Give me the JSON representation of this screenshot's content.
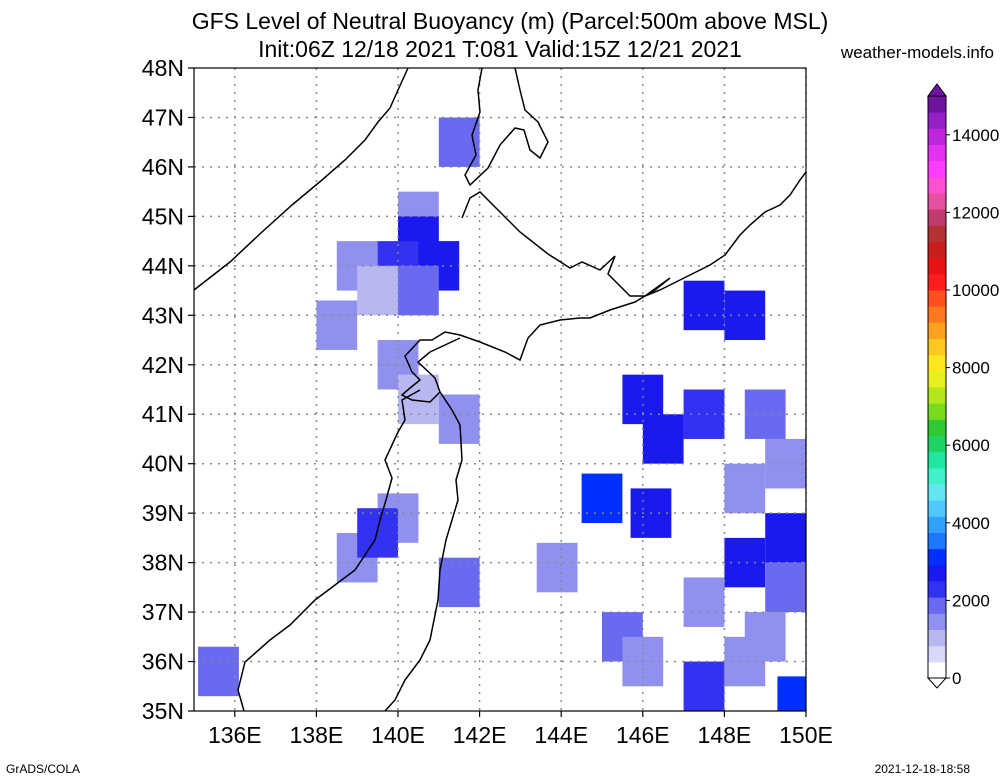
{
  "chart_data": {
    "type": "heatmap",
    "title": "GFS Level of Neutral Buoyancy (m) (Parcel:500m above MSL)",
    "subtitle": "Init:06Z 12/18 2021 T:081 Valid:15Z 12/21 2021",
    "x_ticks": [
      "136E",
      "138E",
      "140E",
      "142E",
      "144E",
      "146E",
      "148E",
      "150E"
    ],
    "y_ticks": [
      "48N",
      "47N",
      "46N",
      "45N",
      "44N",
      "43N",
      "42N",
      "41N",
      "40N",
      "39N",
      "38N",
      "37N",
      "36N",
      "35N"
    ],
    "xlim": [
      135,
      150
    ],
    "ylim": [
      35,
      48
    ],
    "grid": true,
    "colorbar": {
      "labels": [
        "14000",
        "12000",
        "10000",
        "8000",
        "6000",
        "4000",
        "2000",
        "0"
      ],
      "range": [
        0,
        15000
      ],
      "colors": [
        "#ffffff",
        "#d8d8f8",
        "#b8b8f0",
        "#9090ee",
        "#6a6af0",
        "#3232f0",
        "#1a1aee",
        "#0030ff",
        "#1e78ff",
        "#32a0ff",
        "#50c8ff",
        "#64e6f0",
        "#40f0c8",
        "#20e6a0",
        "#1ed264",
        "#32c832",
        "#78dc1e",
        "#b4e61e",
        "#e6f01e",
        "#ffe61e",
        "#ffc81e",
        "#ffa01e",
        "#ff781e",
        "#ff501e",
        "#ff1e1e",
        "#e61414",
        "#c81e1e",
        "#b43232",
        "#c03c6e",
        "#e650a0",
        "#ff50d2",
        "#ff3cff",
        "#e632f0",
        "#be28dc",
        "#9620c8",
        "#6e14a0"
      ]
    },
    "cells": [
      {
        "lon": 141.5,
        "lat": 46.5,
        "value": 1800
      },
      {
        "lon": 140.5,
        "lat": 45.0,
        "value": 1600
      },
      {
        "lon": 140.5,
        "lat": 44.5,
        "value": 2800
      },
      {
        "lon": 139.0,
        "lat": 44.0,
        "value": 1500
      },
      {
        "lon": 140.0,
        "lat": 44.0,
        "value": 2400
      },
      {
        "lon": 141.0,
        "lat": 44.0,
        "value": 2900
      },
      {
        "lon": 139.5,
        "lat": 43.5,
        "value": 1200
      },
      {
        "lon": 140.5,
        "lat": 43.5,
        "value": 1700
      },
      {
        "lon": 138.5,
        "lat": 42.8,
        "value": 1500
      },
      {
        "lon": 140.0,
        "lat": 42.0,
        "value": 1300
      },
      {
        "lon": 140.5,
        "lat": 41.3,
        "value": 1200
      },
      {
        "lon": 141.5,
        "lat": 40.9,
        "value": 1500
      },
      {
        "lon": 139.0,
        "lat": 38.1,
        "value": 1500
      },
      {
        "lon": 140.0,
        "lat": 38.9,
        "value": 1600
      },
      {
        "lon": 139.5,
        "lat": 38.6,
        "value": 2200
      },
      {
        "lon": 141.5,
        "lat": 37.6,
        "value": 1700
      },
      {
        "lon": 143.9,
        "lat": 37.9,
        "value": 1600
      },
      {
        "lon": 135.6,
        "lat": 35.8,
        "value": 2000
      },
      {
        "lon": 147.5,
        "lat": 43.2,
        "value": 2900
      },
      {
        "lon": 148.5,
        "lat": 43.0,
        "value": 2600
      },
      {
        "lon": 146.0,
        "lat": 41.3,
        "value": 2500
      },
      {
        "lon": 146.5,
        "lat": 40.5,
        "value": 2800
      },
      {
        "lon": 147.5,
        "lat": 41.0,
        "value": 2300
      },
      {
        "lon": 149.0,
        "lat": 41.0,
        "value": 1900
      },
      {
        "lon": 149.5,
        "lat": 40.0,
        "value": 1500
      },
      {
        "lon": 148.5,
        "lat": 39.5,
        "value": 1300
      },
      {
        "lon": 149.5,
        "lat": 38.5,
        "value": 2900
      },
      {
        "lon": 148.5,
        "lat": 38.0,
        "value": 2500
      },
      {
        "lon": 149.5,
        "lat": 37.5,
        "value": 1700
      },
      {
        "lon": 147.5,
        "lat": 37.2,
        "value": 1500
      },
      {
        "lon": 145.0,
        "lat": 39.3,
        "value": 3100
      },
      {
        "lon": 146.2,
        "lat": 39.0,
        "value": 2700
      },
      {
        "lon": 145.5,
        "lat": 36.5,
        "value": 1900
      },
      {
        "lon": 146.0,
        "lat": 36.0,
        "value": 1600
      },
      {
        "lon": 149.0,
        "lat": 36.5,
        "value": 1600
      },
      {
        "lon": 147.5,
        "lat": 35.5,
        "value": 2300
      },
      {
        "lon": 148.5,
        "lat": 36.0,
        "value": 1500
      },
      {
        "lon": 149.8,
        "lat": 35.2,
        "value": 3000
      }
    ]
  },
  "footer": {
    "left": "GrADS/COLA",
    "right": "2021-12-18-18:58"
  },
  "site": "weather-models.info"
}
